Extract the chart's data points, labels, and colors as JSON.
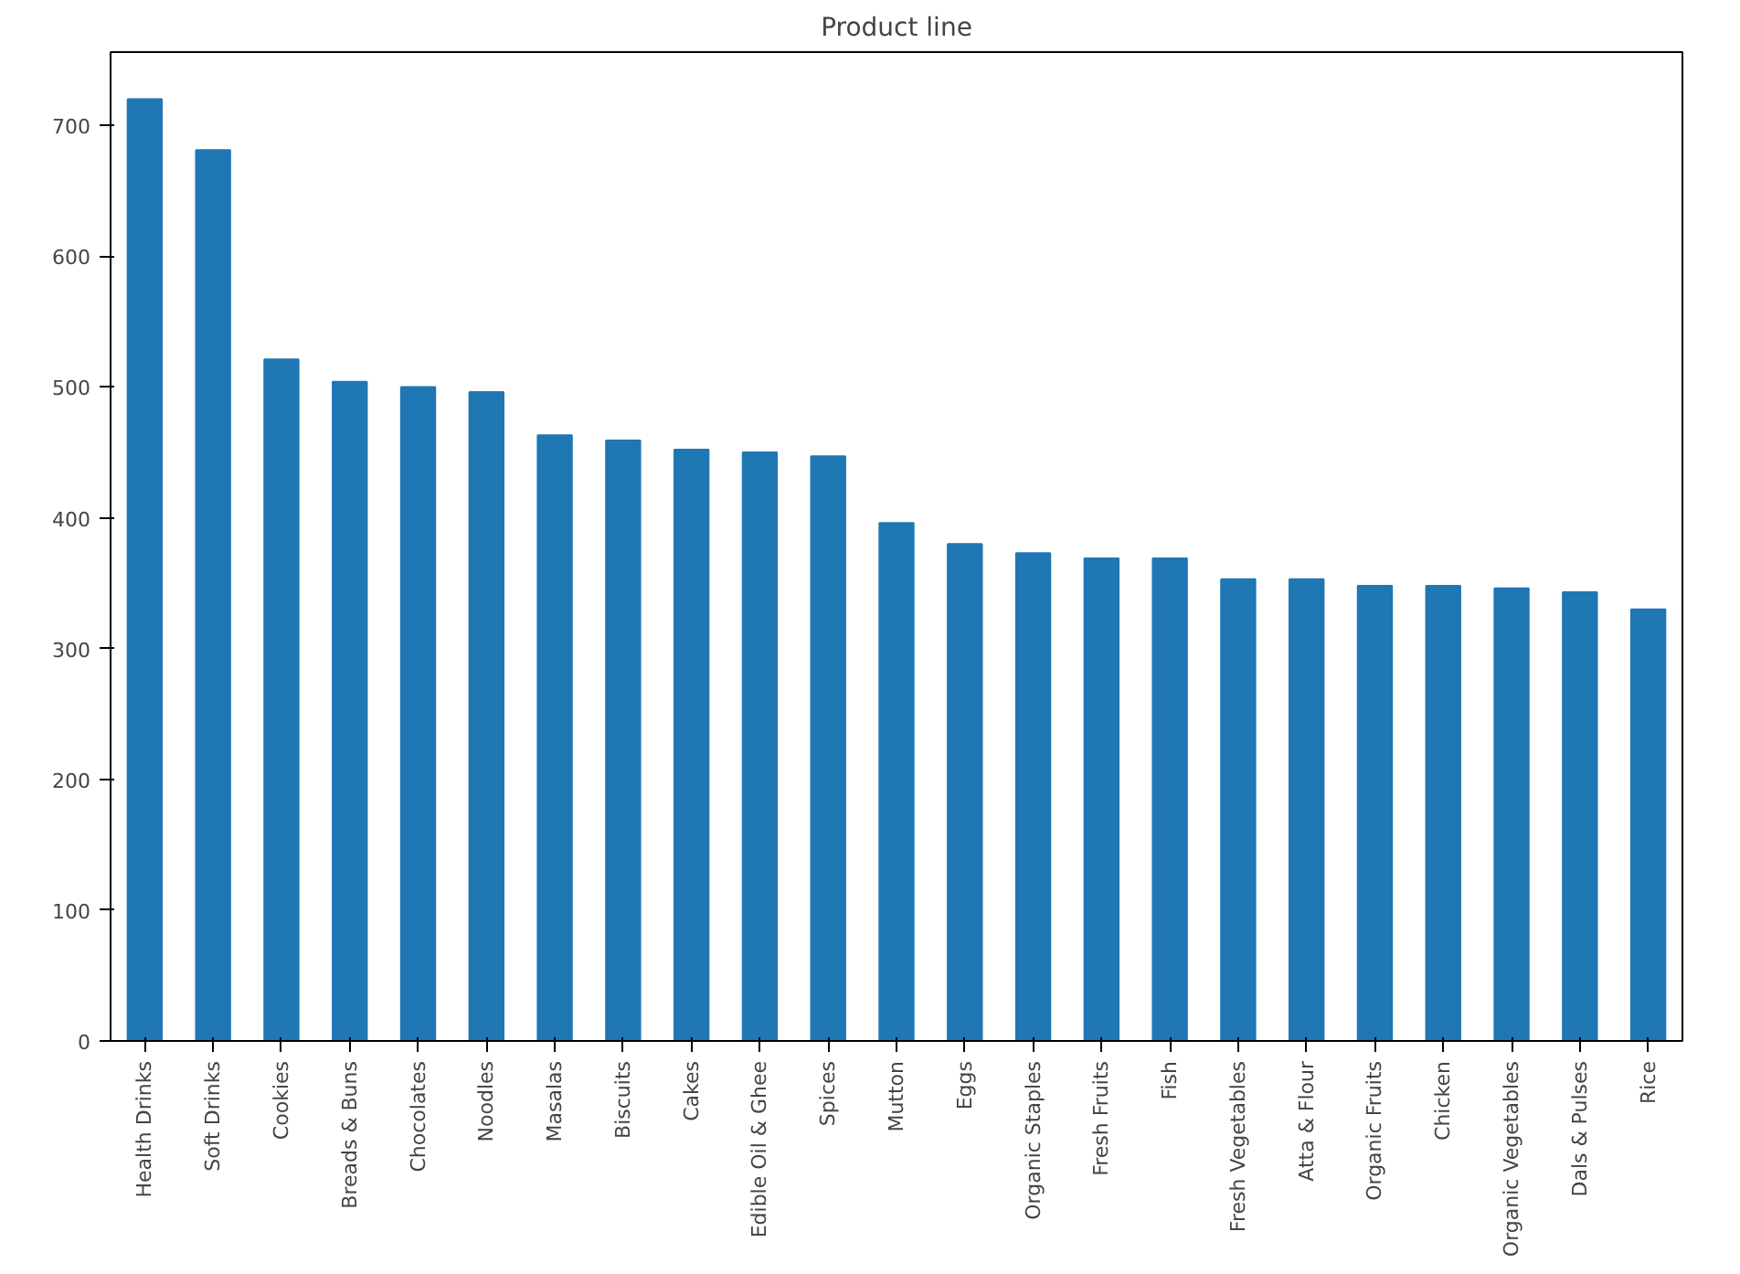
{
  "chart_data": {
    "type": "bar",
    "title": "Product line",
    "categories": [
      "Health Drinks",
      "Soft Drinks",
      "Cookies",
      "Breads & Buns",
      "Chocolates",
      "Noodles",
      "Masalas",
      "Biscuits",
      "Cakes",
      "Edible Oil & Ghee",
      "Spices",
      "Mutton",
      "Eggs",
      "Organic Staples",
      "Fresh Fruits",
      "Fish",
      "Fresh Vegetables",
      "Atta & Flour",
      "Organic Fruits",
      "Chicken",
      "Organic Vegetables",
      "Dals & Pulses",
      "Rice"
    ],
    "values": [
      720,
      681,
      521,
      504,
      500,
      496,
      463,
      459,
      452,
      450,
      447,
      396,
      380,
      373,
      369,
      369,
      353,
      353,
      348,
      348,
      346,
      343,
      330
    ],
    "color": "#1f77b4",
    "ylim": [
      0,
      756
    ],
    "yticks": [
      0,
      100,
      200,
      300,
      400,
      500,
      600,
      700
    ],
    "grid": false
  }
}
